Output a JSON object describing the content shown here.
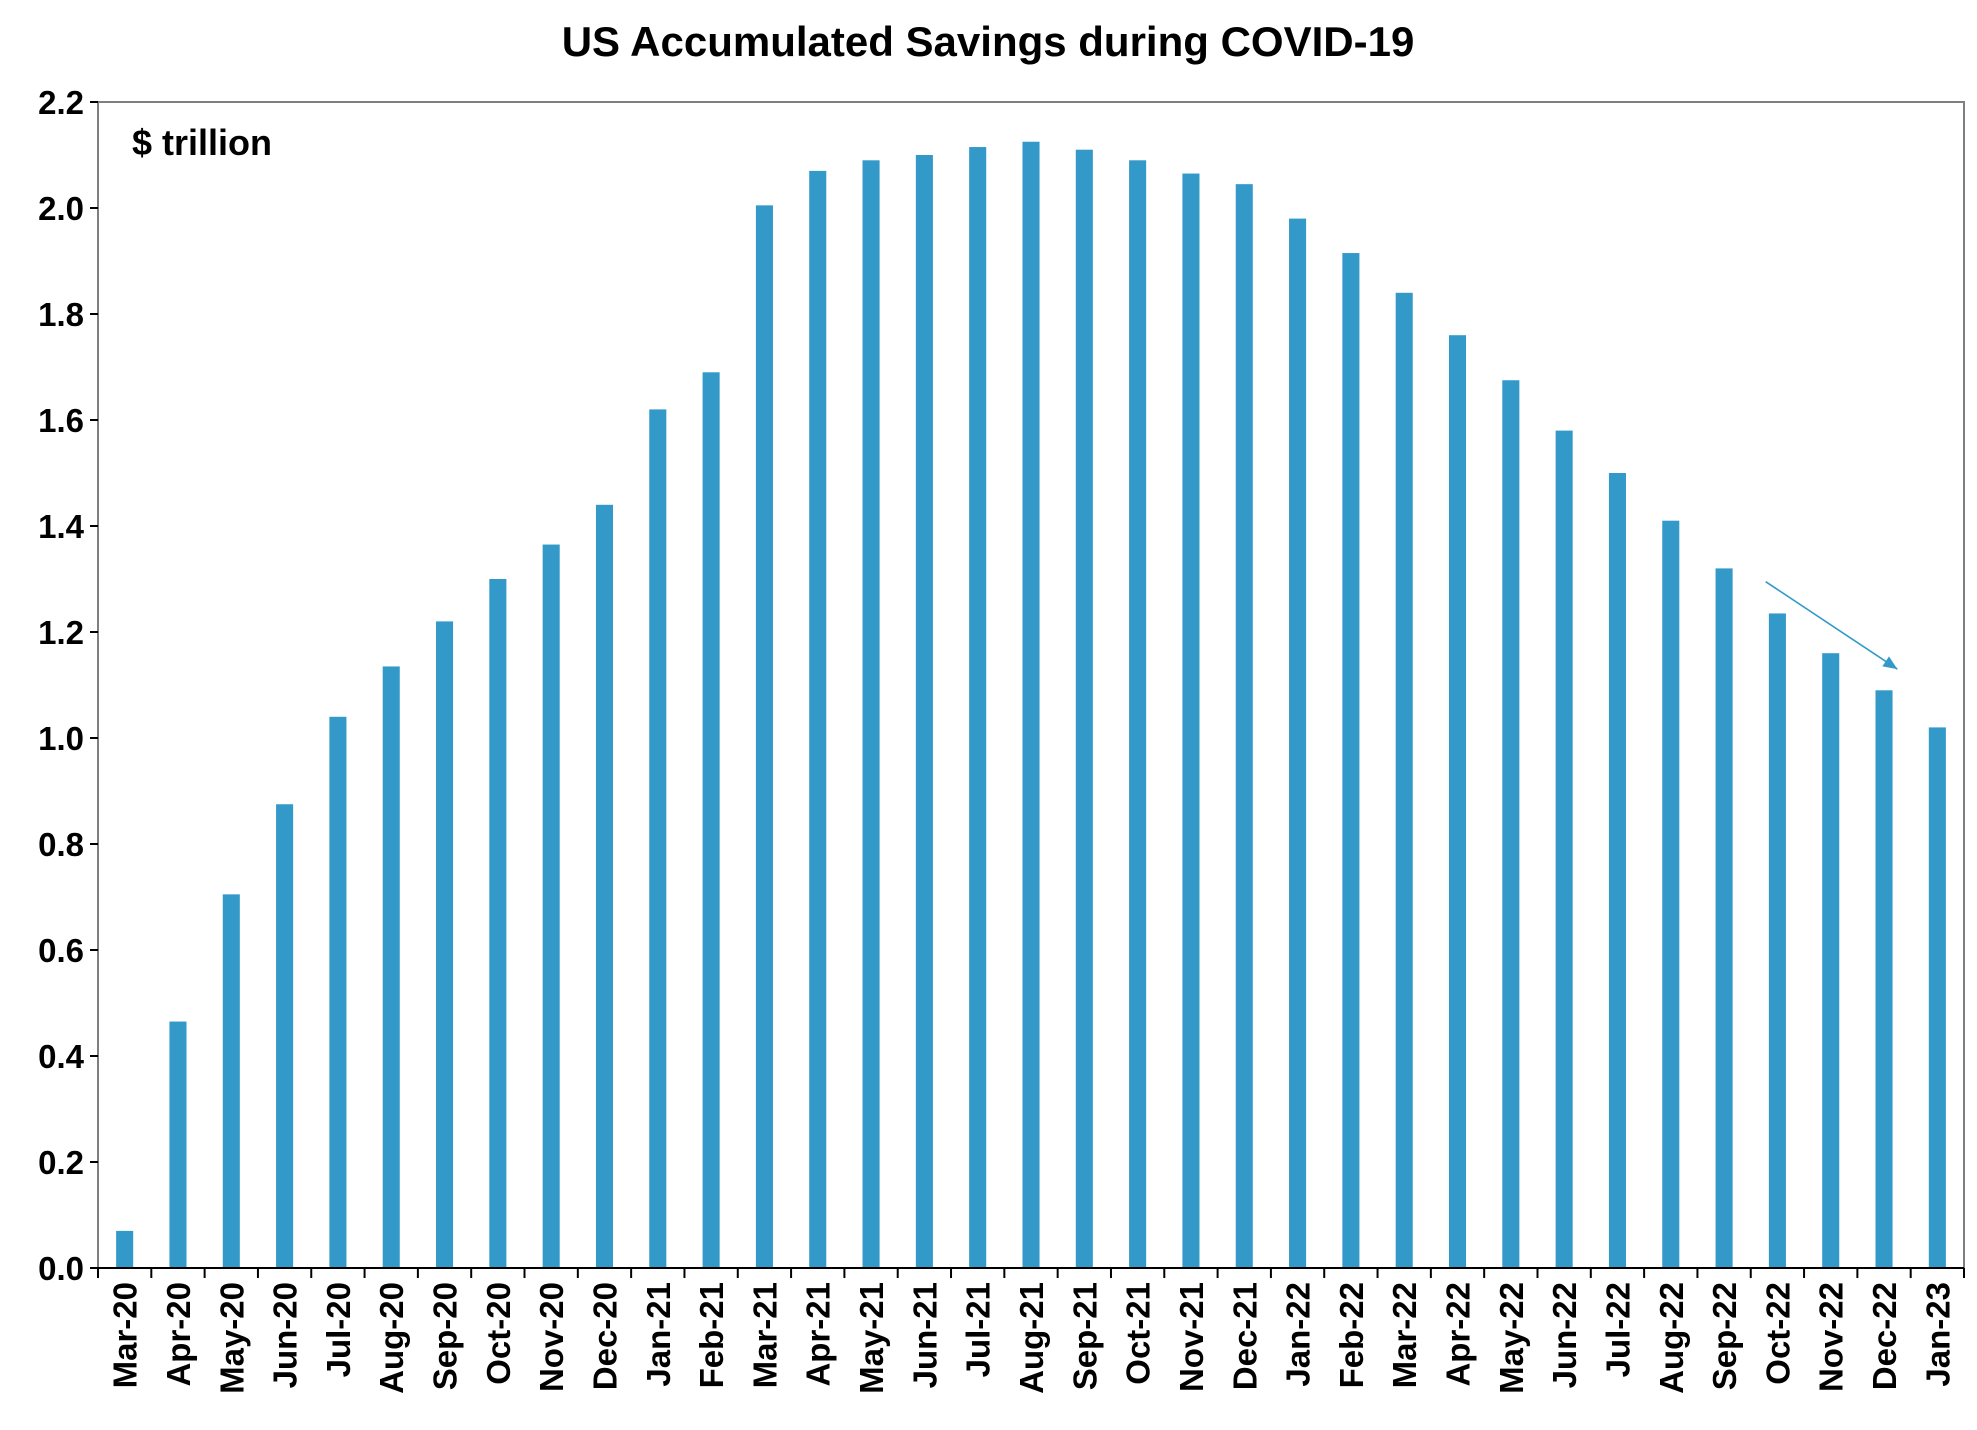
{
  "chart_data": {
    "type": "bar",
    "title": "US Accumulated Savings during COVID-19",
    "unit_label": "$ trillion",
    "xlabel": "",
    "ylabel": "",
    "ylim": [
      0,
      2.2
    ],
    "yticks": [
      "0.0",
      "0.2",
      "0.4",
      "0.6",
      "0.8",
      "1.0",
      "1.2",
      "1.4",
      "1.6",
      "1.8",
      "2.0",
      "2.2"
    ],
    "categories": [
      "Mar-20",
      "Apr-20",
      "May-20",
      "Jun-20",
      "Jul-20",
      "Aug-20",
      "Sep-20",
      "Oct-20",
      "Nov-20",
      "Dec-20",
      "Jan-21",
      "Feb-21",
      "Mar-21",
      "Apr-21",
      "May-21",
      "Jun-21",
      "Jul-21",
      "Aug-21",
      "Sep-21",
      "Oct-21",
      "Nov-21",
      "Dec-21",
      "Jan-22",
      "Feb-22",
      "Mar-22",
      "Apr-22",
      "May-22",
      "Jun-22",
      "Jul-22",
      "Aug-22",
      "Sep-22",
      "Oct-22",
      "Nov-22",
      "Dec-22",
      "Jan-23"
    ],
    "values": [
      0.07,
      0.465,
      0.705,
      0.875,
      1.04,
      1.135,
      1.22,
      1.3,
      1.365,
      1.44,
      1.62,
      1.69,
      2.005,
      2.07,
      2.09,
      2.1,
      2.115,
      2.125,
      2.11,
      2.09,
      2.065,
      2.045,
      1.98,
      1.915,
      1.84,
      1.76,
      1.675,
      1.58,
      1.5,
      1.41,
      1.32,
      1.235,
      1.16,
      1.09,
      1.02
    ],
    "grid": false,
    "legend": "none",
    "annotation": {
      "type": "arrow",
      "description": "downward trend arrow",
      "from": {
        "x": "Oct-22",
        "y": 1.295
      },
      "to": {
        "x": "Dec-22",
        "y": 1.13
      }
    },
    "colors": {
      "bar": "#3399C8",
      "arrow": "#3399C8",
      "axis": "#000000",
      "frame": "#7F7F7F"
    }
  }
}
